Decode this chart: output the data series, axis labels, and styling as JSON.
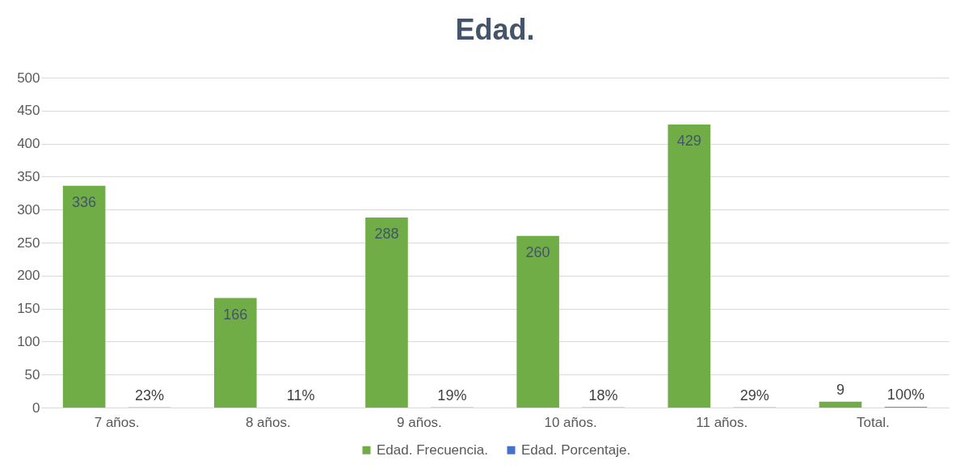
{
  "chart_data": {
    "type": "bar",
    "title": "Edad.",
    "categories": [
      "7 años.",
      "8 años.",
      "9 años.",
      "10 años.",
      "11 años.",
      "Total."
    ],
    "series": [
      {
        "name": "Edad. Frecuencia.",
        "color": "#70ad47",
        "values": [
          336,
          166,
          288,
          260,
          429,
          9
        ],
        "value_labels": [
          "336",
          "166",
          "288",
          "260",
          "429",
          "9"
        ]
      },
      {
        "name": "Edad. Porcentaje.",
        "color": "#4472c4",
        "values": [
          0.23,
          0.11,
          0.19,
          0.18,
          0.29,
          1
        ],
        "value_labels": [
          "23%",
          "11%",
          "19%",
          "18%",
          "29%",
          "100%"
        ]
      }
    ],
    "ylim": [
      0,
      500
    ],
    "yticks": [
      0,
      50,
      100,
      150,
      200,
      250,
      300,
      350,
      400,
      450,
      500
    ],
    "grid": "y",
    "legend": "bottom"
  }
}
